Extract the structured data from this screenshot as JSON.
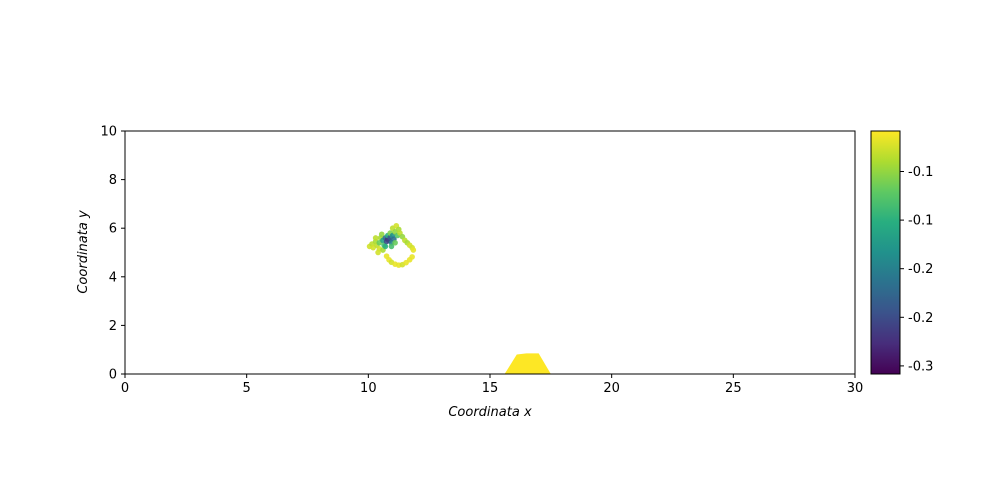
{
  "chart_data": {
    "type": "scatter",
    "title": "",
    "xlabel": "Coordinata x",
    "ylabel": "Coordinata y",
    "xlim": [
      0,
      30
    ],
    "ylim": [
      0,
      10
    ],
    "xticks": [
      "0",
      "5",
      "10",
      "15",
      "20",
      "25",
      "30"
    ],
    "yticks": [
      "0",
      "2",
      "4",
      "6",
      "8",
      "10"
    ],
    "grid": false,
    "colormap": "viridis",
    "colorbar": {
      "range": [
        -0.31,
        -0.01
      ],
      "tick_values": [
        -0.06,
        -0.12,
        -0.18,
        -0.24,
        -0.3
      ],
      "tick_labels": [
        "-0.1",
        "-0.1",
        "-0.2",
        "-0.2",
        "-0.3"
      ]
    },
    "obstacle": {
      "color": "#fde725",
      "polygon": [
        [
          15.6,
          0
        ],
        [
          16.1,
          0.8
        ],
        [
          16.5,
          0.85
        ],
        [
          17.0,
          0.85
        ],
        [
          17.5,
          0
        ]
      ]
    },
    "particles": [
      {
        "x": 10.05,
        "y": 5.25,
        "c": -0.03
      },
      {
        "x": 10.15,
        "y": 5.35,
        "c": -0.04
      },
      {
        "x": 10.2,
        "y": 5.2,
        "c": -0.03
      },
      {
        "x": 10.3,
        "y": 5.45,
        "c": -0.05
      },
      {
        "x": 10.35,
        "y": 5.3,
        "c": -0.04
      },
      {
        "x": 10.45,
        "y": 5.15,
        "c": -0.03
      },
      {
        "x": 10.5,
        "y": 5.6,
        "c": -0.05
      },
      {
        "x": 10.45,
        "y": 5.4,
        "c": -0.08
      },
      {
        "x": 10.55,
        "y": 5.75,
        "c": -0.06
      },
      {
        "x": 10.6,
        "y": 5.5,
        "c": -0.14
      },
      {
        "x": 10.65,
        "y": 5.3,
        "c": -0.1
      },
      {
        "x": 10.7,
        "y": 5.6,
        "c": -0.2
      },
      {
        "x": 10.75,
        "y": 5.45,
        "c": -0.24
      },
      {
        "x": 10.8,
        "y": 5.55,
        "c": -0.27
      },
      {
        "x": 10.8,
        "y": 5.7,
        "c": -0.12
      },
      {
        "x": 10.85,
        "y": 5.5,
        "c": -0.25
      },
      {
        "x": 10.9,
        "y": 5.62,
        "c": -0.22
      },
      {
        "x": 10.95,
        "y": 5.4,
        "c": -0.18
      },
      {
        "x": 10.9,
        "y": 5.8,
        "c": -0.07
      },
      {
        "x": 11.0,
        "y": 5.7,
        "c": -0.16
      },
      {
        "x": 11.05,
        "y": 5.55,
        "c": -0.2
      },
      {
        "x": 11.0,
        "y": 6.0,
        "c": -0.04
      },
      {
        "x": 11.1,
        "y": 5.85,
        "c": -0.06
      },
      {
        "x": 11.15,
        "y": 6.1,
        "c": -0.03
      },
      {
        "x": 11.2,
        "y": 5.7,
        "c": -0.09
      },
      {
        "x": 11.25,
        "y": 5.95,
        "c": -0.05
      },
      {
        "x": 11.3,
        "y": 5.8,
        "c": -0.04
      },
      {
        "x": 11.4,
        "y": 5.65,
        "c": -0.06
      },
      {
        "x": 11.5,
        "y": 5.5,
        "c": -0.04
      },
      {
        "x": 11.6,
        "y": 5.4,
        "c": -0.05
      },
      {
        "x": 11.7,
        "y": 5.3,
        "c": -0.03
      },
      {
        "x": 11.8,
        "y": 5.2,
        "c": -0.03
      },
      {
        "x": 11.85,
        "y": 5.1,
        "c": -0.02
      },
      {
        "x": 10.6,
        "y": 5.1,
        "c": -0.05
      },
      {
        "x": 10.7,
        "y": 5.25,
        "c": -0.12
      },
      {
        "x": 10.4,
        "y": 5.0,
        "c": -0.03
      },
      {
        "x": 10.75,
        "y": 4.85,
        "c": -0.02
      },
      {
        "x": 10.85,
        "y": 4.7,
        "c": -0.02
      },
      {
        "x": 10.95,
        "y": 4.6,
        "c": -0.03
      },
      {
        "x": 11.1,
        "y": 4.52,
        "c": -0.02
      },
      {
        "x": 11.25,
        "y": 4.48,
        "c": -0.02
      },
      {
        "x": 11.4,
        "y": 4.5,
        "c": -0.03
      },
      {
        "x": 11.55,
        "y": 4.58,
        "c": -0.02
      },
      {
        "x": 11.7,
        "y": 4.7,
        "c": -0.02
      },
      {
        "x": 11.8,
        "y": 4.82,
        "c": -0.02
      },
      {
        "x": 10.3,
        "y": 5.6,
        "c": -0.04
      },
      {
        "x": 10.95,
        "y": 5.25,
        "c": -0.1
      },
      {
        "x": 11.1,
        "y": 5.4,
        "c": -0.08
      }
    ]
  }
}
